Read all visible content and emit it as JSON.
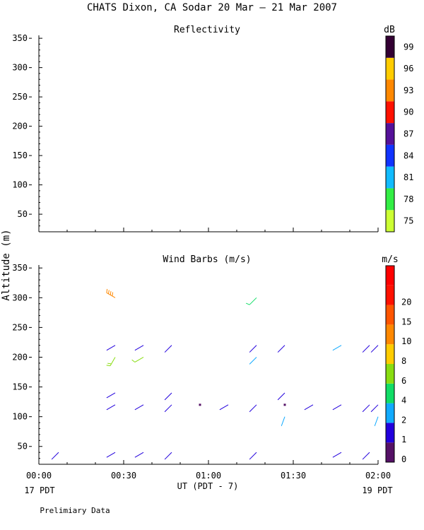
{
  "title": "CHATS Dixon, CA  Sodar  20 Mar — 21 Mar 2007",
  "footer_note": "Prelimiary Data",
  "y_axis_label": "Altitude (m)",
  "x_axis": {
    "label": "UT  (PDT - 7)",
    "tick_labels": [
      "00:00",
      "00:30",
      "01:00",
      "01:30",
      "02:00"
    ],
    "left_sublabel": "17 PDT",
    "right_sublabel": "19 PDT"
  },
  "reflectivity": {
    "colorbar_unit": "dB",
    "colorbar_labels": [
      "75",
      "78",
      "81",
      "84",
      "87",
      "90",
      "93",
      "96",
      "99"
    ],
    "colorbar_colors": [
      "#ccff33",
      "#33ee44",
      "#11bbff",
      "#1133ff",
      "#551199",
      "#ff1100",
      "#ff8800",
      "#ffcc00",
      "#330033"
    ]
  },
  "wind": {
    "colorbar_unit": "m/s",
    "colorbar_labels": [
      "0",
      "1",
      "2",
      "4",
      "6",
      "8",
      "10",
      "15",
      "20"
    ],
    "colorbar_colors": [
      "#551166",
      "#2200dd",
      "#11aaff",
      "#11dd66",
      "#88dd11",
      "#ffcc00",
      "#ff8800",
      "#ff5500",
      "#ff1100",
      "#ff0000"
    ]
  },
  "chart_data": [
    {
      "type": "heatmap",
      "title": "Reflectivity",
      "ylim": [
        20,
        355
      ],
      "y_ticks": [
        50,
        100,
        150,
        200,
        250,
        300,
        350
      ],
      "x_range_minutes": [
        0,
        120
      ],
      "values": []
    },
    {
      "type": "scatter",
      "title": "Wind Barbs (m/s)",
      "ylim": [
        20,
        355
      ],
      "y_ticks": [
        50,
        100,
        150,
        200,
        250,
        300,
        350
      ],
      "x_range_minutes": [
        0,
        120
      ],
      "barbs": [
        {
          "t": 7,
          "alt": 40,
          "dir": 225,
          "speed": 1.5
        },
        {
          "t": 27,
          "alt": 40,
          "dir": 240,
          "speed": 1.5
        },
        {
          "t": 37,
          "alt": 40,
          "dir": 240,
          "speed": 1.5
        },
        {
          "t": 47,
          "alt": 40,
          "dir": 225,
          "speed": 1.5
        },
        {
          "t": 77,
          "alt": 40,
          "dir": 225,
          "speed": 1.5
        },
        {
          "t": 107,
          "alt": 40,
          "dir": 240,
          "speed": 1.5
        },
        {
          "t": 117,
          "alt": 40,
          "dir": 225,
          "speed": 1.5
        },
        {
          "t": 27,
          "alt": 120,
          "dir": 240,
          "speed": 1.5
        },
        {
          "t": 37,
          "alt": 120,
          "dir": 240,
          "speed": 1.5
        },
        {
          "t": 47,
          "alt": 120,
          "dir": 225,
          "speed": 1.5
        },
        {
          "t": 67,
          "alt": 120,
          "dir": 240,
          "speed": 1.5
        },
        {
          "t": 77,
          "alt": 120,
          "dir": 225,
          "speed": 1.5
        },
        {
          "t": 97,
          "alt": 120,
          "dir": 240,
          "speed": 1.5
        },
        {
          "t": 107,
          "alt": 120,
          "dir": 240,
          "speed": 1.5
        },
        {
          "t": 117,
          "alt": 120,
          "dir": 225,
          "speed": 1.5
        },
        {
          "t": 120,
          "alt": 120,
          "dir": 225,
          "speed": 1.5
        },
        {
          "t": 27,
          "alt": 140,
          "dir": 240,
          "speed": 1.5
        },
        {
          "t": 47,
          "alt": 140,
          "dir": 225,
          "speed": 1.5
        },
        {
          "t": 87,
          "alt": 140,
          "dir": 225,
          "speed": 1.5
        },
        {
          "t": 27,
          "alt": 220,
          "dir": 240,
          "speed": 1.5
        },
        {
          "t": 37,
          "alt": 220,
          "dir": 240,
          "speed": 1.5
        },
        {
          "t": 47,
          "alt": 220,
          "dir": 225,
          "speed": 1.5
        },
        {
          "t": 77,
          "alt": 220,
          "dir": 225,
          "speed": 1.5
        },
        {
          "t": 87,
          "alt": 220,
          "dir": 225,
          "speed": 1.5
        },
        {
          "t": 107,
          "alt": 220,
          "dir": 240,
          "speed": 2.5
        },
        {
          "t": 117,
          "alt": 220,
          "dir": 225,
          "speed": 1.5
        },
        {
          "t": 120,
          "alt": 220,
          "dir": 225,
          "speed": 1.5
        },
        {
          "t": 27,
          "alt": 200,
          "dir": 210,
          "speed": 7
        },
        {
          "t": 37,
          "alt": 200,
          "dir": 240,
          "speed": 6.5
        },
        {
          "t": 77,
          "alt": 200,
          "dir": 225,
          "speed": 3
        },
        {
          "t": 87,
          "alt": 100,
          "dir": 200,
          "speed": 3
        },
        {
          "t": 120,
          "alt": 100,
          "dir": 200,
          "speed": 3
        },
        {
          "t": 77,
          "alt": 300,
          "dir": 225,
          "speed": 5
        },
        {
          "t": 27,
          "alt": 300,
          "dir": 300,
          "speed": 12
        },
        {
          "t": 57,
          "alt": 120,
          "dir": 0,
          "speed": 0
        },
        {
          "t": 87,
          "alt": 120,
          "dir": 0,
          "speed": 0
        }
      ]
    }
  ]
}
